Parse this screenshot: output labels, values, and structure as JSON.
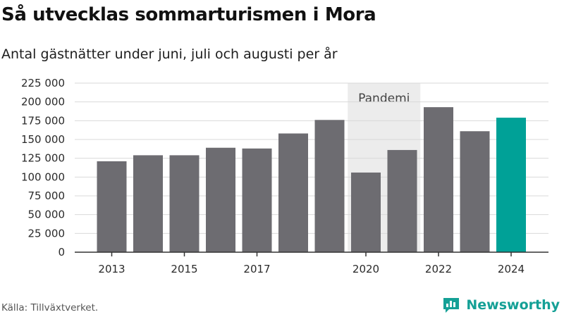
{
  "title": "Så utvecklas sommarturismen i Mora",
  "subtitle": "Antal gästnätter under juni, juli och augusti per år",
  "source": "Källa: Tillväxtverket.",
  "brand": {
    "name": "Newsworthy"
  },
  "colors": {
    "bar": "#6d6c71",
    "highlight": "#00a197",
    "grid": "#d9d9d9",
    "band": "#ececec",
    "axis": "#333333",
    "brand": "#14a096"
  },
  "chart_data": {
    "type": "bar",
    "title": "Så utvecklas sommarturismen i Mora",
    "subtitle": "Antal gästnätter under juni, juli och augusti per år",
    "categories": [
      "2013",
      "2014",
      "2015",
      "2016",
      "2017",
      "2018",
      "2019",
      "2020",
      "2021",
      "2022",
      "2023",
      "2024"
    ],
    "values": [
      121000,
      129000,
      129000,
      139000,
      138000,
      158000,
      176000,
      106000,
      136000,
      193000,
      161000,
      179000
    ],
    "highlight_category": "2024",
    "x_tick_labels": [
      "2013",
      "2015",
      "2017",
      "2020",
      "2022",
      "2024"
    ],
    "y_tick_labels": [
      "0",
      "25 000",
      "50 000",
      "75 000",
      "100 000",
      "125 000",
      "150 000",
      "175 000",
      "200 000",
      "225 000"
    ],
    "y_ticks": [
      0,
      25000,
      50000,
      75000,
      100000,
      125000,
      150000,
      175000,
      200000,
      225000
    ],
    "ylim": [
      0,
      225000
    ],
    "grid": true,
    "xlabel": "",
    "ylabel": "",
    "annotation": {
      "label": "Pandemi",
      "from": "2020",
      "to": "2021"
    }
  }
}
